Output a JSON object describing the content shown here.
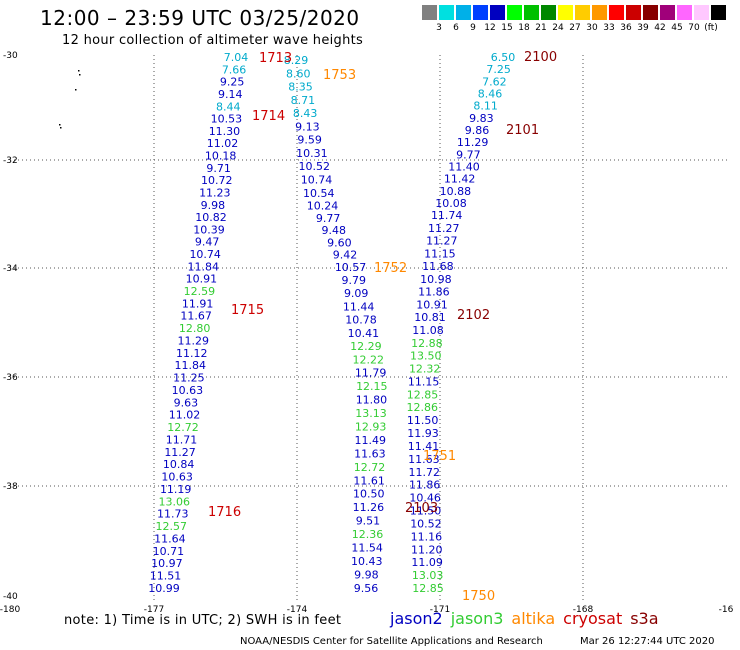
{
  "header": {
    "title": "12:00 – 23:59 UTC 03/25/2020",
    "subtitle": "12 hour collection of altimeter wave heights"
  },
  "colorbar": {
    "colors": [
      "#808080",
      "#00e0e0",
      "#00b0e8",
      "#0040ff",
      "#0000c0",
      "#00ff00",
      "#00c000",
      "#008800",
      "#ffff00",
      "#ffcc00",
      "#ff9900",
      "#ff0000",
      "#cc0000",
      "#880000",
      "#a0007a",
      "#ff66ff",
      "#ffc8ff",
      "#000000"
    ],
    "labels": [
      "3",
      "6",
      "9",
      "12",
      "15",
      "18",
      "21",
      "24",
      "27",
      "30",
      "33",
      "36",
      "39",
      "42",
      "45",
      "70",
      "(ft)"
    ]
  },
  "axes": {
    "lon_labels": [
      "-180",
      "-177",
      "-174",
      "-171",
      "-168",
      "-16"
    ],
    "lat_labels": [
      "-30",
      "-32",
      "-34",
      "-36",
      "-38",
      "-40"
    ]
  },
  "colors": {
    "jason2": "#0000c0",
    "jason3": "#33cc33",
    "altika": "#ff8800",
    "cryosat": "#cc0000",
    "s3a": "#880000",
    "cyan": "#00aacc"
  },
  "tracks": [
    {
      "name": "track-1713",
      "values": [
        {
          "v": "7.04",
          "c": "cyan"
        },
        {
          "v": "7.66",
          "c": "cyan"
        },
        {
          "v": "9.25",
          "c": "jason2"
        },
        {
          "v": "9.14",
          "c": "jason2"
        },
        {
          "v": "8.44",
          "c": "cyan"
        },
        {
          "v": "10.53",
          "c": "jason2"
        },
        {
          "v": "11.30",
          "c": "jason2"
        },
        {
          "v": "11.02",
          "c": "jason2"
        },
        {
          "v": "10.18",
          "c": "jason2"
        },
        {
          "v": "9.71",
          "c": "jason2"
        },
        {
          "v": "10.72",
          "c": "jason2"
        },
        {
          "v": "11.23",
          "c": "jason2"
        },
        {
          "v": "9.98",
          "c": "jason2"
        },
        {
          "v": "10.82",
          "c": "jason2"
        },
        {
          "v": "10.39",
          "c": "jason2"
        },
        {
          "v": "9.47",
          "c": "jason2"
        },
        {
          "v": "10.74",
          "c": "jason2"
        },
        {
          "v": "11.84",
          "c": "jason2"
        },
        {
          "v": "10.91",
          "c": "jason2"
        },
        {
          "v": "12.59",
          "c": "jason3"
        },
        {
          "v": "11.91",
          "c": "jason2"
        },
        {
          "v": "11.67",
          "c": "jason2"
        },
        {
          "v": "12.80",
          "c": "jason3"
        },
        {
          "v": "11.29",
          "c": "jason2"
        },
        {
          "v": "11.12",
          "c": "jason2"
        },
        {
          "v": "11.84",
          "c": "jason2"
        },
        {
          "v": "11.25",
          "c": "jason2"
        },
        {
          "v": "10.63",
          "c": "jason2"
        },
        {
          "v": "9.63",
          "c": "jason2"
        },
        {
          "v": "11.02",
          "c": "jason2"
        },
        {
          "v": "12.72",
          "c": "jason3"
        },
        {
          "v": "11.71",
          "c": "jason2"
        },
        {
          "v": "11.27",
          "c": "jason2"
        },
        {
          "v": "10.84",
          "c": "jason2"
        },
        {
          "v": "10.63",
          "c": "jason2"
        },
        {
          "v": "11.19",
          "c": "jason2"
        },
        {
          "v": "13.06",
          "c": "jason3"
        },
        {
          "v": "11.73",
          "c": "jason2"
        },
        {
          "v": "12.57",
          "c": "jason3"
        },
        {
          "v": "11.64",
          "c": "jason2"
        },
        {
          "v": "10.71",
          "c": "jason2"
        },
        {
          "v": "10.97",
          "c": "jason2"
        },
        {
          "v": "11.51",
          "c": "jason2"
        },
        {
          "v": "10.99",
          "c": "jason2"
        }
      ]
    },
    {
      "name": "track-1753",
      "values": [
        {
          "v": "8.29",
          "c": "cyan"
        },
        {
          "v": "8.60",
          "c": "cyan"
        },
        {
          "v": "8.35",
          "c": "cyan"
        },
        {
          "v": "8.71",
          "c": "cyan"
        },
        {
          "v": "8.43",
          "c": "cyan"
        },
        {
          "v": "9.13",
          "c": "jason2"
        },
        {
          "v": "9.59",
          "c": "jason2"
        },
        {
          "v": "10.31",
          "c": "jason2"
        },
        {
          "v": "10.52",
          "c": "jason2"
        },
        {
          "v": "10.74",
          "c": "jason2"
        },
        {
          "v": "10.54",
          "c": "jason2"
        },
        {
          "v": "10.24",
          "c": "jason2"
        },
        {
          "v": "9.77",
          "c": "jason2"
        },
        {
          "v": "9.48",
          "c": "jason2"
        },
        {
          "v": "9.60",
          "c": "jason2"
        },
        {
          "v": "9.42",
          "c": "jason2"
        },
        {
          "v": "10.57",
          "c": "jason2"
        },
        {
          "v": "9.79",
          "c": "jason2"
        },
        {
          "v": "9.09",
          "c": "jason2"
        },
        {
          "v": "11.44",
          "c": "jason2"
        },
        {
          "v": "10.78",
          "c": "jason2"
        },
        {
          "v": "10.41",
          "c": "jason2"
        },
        {
          "v": "12.29",
          "c": "jason3"
        },
        {
          "v": "12.22",
          "c": "jason3"
        },
        {
          "v": "11.79",
          "c": "jason2"
        },
        {
          "v": "12.15",
          "c": "jason3"
        },
        {
          "v": "11.80",
          "c": "jason2"
        },
        {
          "v": "13.13",
          "c": "jason3"
        },
        {
          "v": "12.93",
          "c": "jason3"
        },
        {
          "v": "11.49",
          "c": "jason2"
        },
        {
          "v": "11.63",
          "c": "jason2"
        },
        {
          "v": "12.72",
          "c": "jason3"
        },
        {
          "v": "11.61",
          "c": "jason2"
        },
        {
          "v": "10.50",
          "c": "jason2"
        },
        {
          "v": "11.26",
          "c": "jason2"
        },
        {
          "v": "9.51",
          "c": "jason2"
        },
        {
          "v": "12.36",
          "c": "jason3"
        },
        {
          "v": "11.54",
          "c": "jason2"
        },
        {
          "v": "10.43",
          "c": "jason2"
        },
        {
          "v": "9.98",
          "c": "jason2"
        },
        {
          "v": "9.56",
          "c": "jason2"
        }
      ]
    },
    {
      "name": "track-2100",
      "values": [
        {
          "v": "6.50",
          "c": "cyan"
        },
        {
          "v": "7.25",
          "c": "cyan"
        },
        {
          "v": "7.62",
          "c": "cyan"
        },
        {
          "v": "8.46",
          "c": "cyan"
        },
        {
          "v": "8.11",
          "c": "cyan"
        },
        {
          "v": "9.83",
          "c": "jason2"
        },
        {
          "v": "9.86",
          "c": "jason2"
        },
        {
          "v": "11.29",
          "c": "jason2"
        },
        {
          "v": "9.77",
          "c": "jason2"
        },
        {
          "v": "11.40",
          "c": "jason2"
        },
        {
          "v": "11.42",
          "c": "jason2"
        },
        {
          "v": "10.88",
          "c": "jason2"
        },
        {
          "v": "10.08",
          "c": "jason2"
        },
        {
          "v": "11.74",
          "c": "jason2"
        },
        {
          "v": "11.27",
          "c": "jason2"
        },
        {
          "v": "11.27",
          "c": "jason2"
        },
        {
          "v": "11.15",
          "c": "jason2"
        },
        {
          "v": "11.68",
          "c": "jason2"
        },
        {
          "v": "10.98",
          "c": "jason2"
        },
        {
          "v": "11.86",
          "c": "jason2"
        },
        {
          "v": "10.91",
          "c": "jason2"
        },
        {
          "v": "10.81",
          "c": "jason2"
        },
        {
          "v": "11.08",
          "c": "jason2"
        },
        {
          "v": "12.88",
          "c": "jason3"
        },
        {
          "v": "13.50",
          "c": "jason3"
        },
        {
          "v": "12.32",
          "c": "jason3"
        },
        {
          "v": "11.15",
          "c": "jason2"
        },
        {
          "v": "12.85",
          "c": "jason3"
        },
        {
          "v": "12.86",
          "c": "jason3"
        },
        {
          "v": "11.50",
          "c": "jason2"
        },
        {
          "v": "11.93",
          "c": "jason2"
        },
        {
          "v": "11.41",
          "c": "jason2"
        },
        {
          "v": "11.63",
          "c": "jason2"
        },
        {
          "v": "11.72",
          "c": "jason2"
        },
        {
          "v": "11.86",
          "c": "jason2"
        },
        {
          "v": "10.46",
          "c": "jason2"
        },
        {
          "v": "11.50",
          "c": "jason2"
        },
        {
          "v": "10.52",
          "c": "jason2"
        },
        {
          "v": "11.16",
          "c": "jason2"
        },
        {
          "v": "11.20",
          "c": "jason2"
        },
        {
          "v": "11.09",
          "c": "jason2"
        },
        {
          "v": "13.03",
          "c": "jason3"
        },
        {
          "v": "12.85",
          "c": "jason3"
        }
      ]
    }
  ],
  "time_labels": [
    {
      "t": "1713",
      "c": "cryosat"
    },
    {
      "t": "1714",
      "c": "cryosat"
    },
    {
      "t": "1715",
      "c": "cryosat"
    },
    {
      "t": "1716",
      "c": "cryosat"
    },
    {
      "t": "1753",
      "c": "altika"
    },
    {
      "t": "1752",
      "c": "altika"
    },
    {
      "t": "1751",
      "c": "altika"
    },
    {
      "t": "1750",
      "c": "altika"
    },
    {
      "t": "2100",
      "c": "s3a"
    },
    {
      "t": "2101",
      "c": "s3a"
    },
    {
      "t": "2102",
      "c": "s3a"
    },
    {
      "t": "2103",
      "c": "s3a"
    }
  ],
  "footer": {
    "note": "note: 1) Time is in UTC; 2) SWH is in feet",
    "legend": [
      {
        "label": "jason2",
        "color": "#0000c0"
      },
      {
        "label": "jason3",
        "color": "#33cc33"
      },
      {
        "label": "altika",
        "color": "#ff8800"
      },
      {
        "label": "cryosat",
        "color": "#cc0000"
      },
      {
        "label": "s3a",
        "color": "#880000"
      }
    ],
    "credit": "NOAA/NESDIS Center for Satellite Applications and Research",
    "stamp": "Mar 26 12:27:44 UTC 2020"
  }
}
